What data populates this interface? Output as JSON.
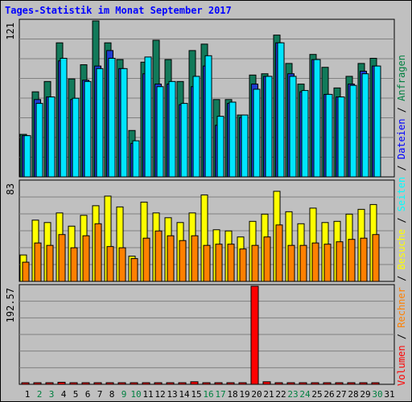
{
  "title": "Tages-Statistik im Monat September 2017",
  "legend": {
    "separator": " / ",
    "items": [
      {
        "label": "Volumen",
        "color": "#ff0000"
      },
      {
        "label": "Rechner",
        "color": "#ff8000"
      },
      {
        "label": "Besuche",
        "color": "#ffff00"
      },
      {
        "label": "Seiten",
        "color": "#00ffff"
      },
      {
        "label": "Dateien",
        "color": "#0000ff"
      },
      {
        "label": "Anfragen",
        "color": "#008040"
      }
    ]
  },
  "colors": {
    "anfragen": "#127a5a",
    "dateien": "#1e3ccf",
    "seiten": "#00e5ff",
    "besuche": "#ffff00",
    "rechner": "#ff8000",
    "volumen": "#ff0000",
    "weekday_label": "#000000",
    "weekend_label": "#008040"
  },
  "chart_data": {
    "type": "bar",
    "title": "Tages-Statistik im Monat September 2017",
    "days": [
      "1",
      "2",
      "3",
      "4",
      "5",
      "6",
      "7",
      "8",
      "9",
      "10",
      "11",
      "12",
      "13",
      "14",
      "15",
      "16",
      "17",
      "18",
      "19",
      "20",
      "21",
      "22",
      "23",
      "24",
      "25",
      "26",
      "27",
      "28",
      "29",
      "30",
      "31"
    ],
    "weekend_days": [
      "2",
      "3",
      "9",
      "10",
      "16",
      "17",
      "23",
      "24",
      "30"
    ],
    "panels": [
      {
        "name": "top",
        "axis_label": "121",
        "ylim": [
          0,
          121
        ],
        "series": [
          {
            "key": "anfragen",
            "values": [
              33,
              66,
              74,
              104,
              76,
              87,
              121,
              104,
              91,
              36,
              89,
              106,
              91,
              74,
              98,
              103,
              60,
              60,
              48,
              79,
              80,
              110,
              88,
              72,
              95,
              85,
              69,
              78,
              88,
              92,
              0
            ]
          },
          {
            "key": "dateien",
            "values": [
              32,
              60,
              62,
              90,
              60,
              75,
              86,
              98,
              84,
              26,
              80,
              72,
              72,
              56,
              70,
              86,
              40,
              57,
              46,
              72,
              78,
              104,
              80,
              66,
              91,
              64,
              62,
              72,
              82,
              86,
              0
            ]
          },
          {
            "key": "seiten",
            "values": [
              32,
              57,
              62,
              92,
              61,
              74,
              84,
              92,
              84,
              28,
              93,
              70,
              74,
              57,
              78,
              94,
              47,
              58,
              48,
              68,
              78,
              104,
              78,
              67,
              91,
              64,
              62,
              71,
              80,
              86,
              0
            ]
          }
        ]
      },
      {
        "name": "middle",
        "axis_label": "83",
        "ylim": [
          0,
          83
        ],
        "series": [
          {
            "key": "besuche",
            "values": [
              22,
              51,
              49,
              57,
              46,
              55,
              63,
              71,
              62,
              21,
              66,
              57,
              53,
              49,
              57,
              72,
              43,
              42,
              37,
              50,
              56,
              75,
              58,
              48,
              61,
              49,
              50,
              56,
              60,
              64,
              0
            ]
          },
          {
            "key": "rechner",
            "values": [
              16,
              32,
              30,
              39,
              28,
              38,
              48,
              29,
              28,
              19,
              36,
              42,
              38,
              34,
              38,
              30,
              31,
              31,
              27,
              30,
              37,
              47,
              30,
              30,
              32,
              31,
              33,
              35,
              36,
              39,
              0
            ]
          }
        ]
      },
      {
        "name": "bottom",
        "axis_label": "192.57",
        "ylim": [
          0,
          192.57
        ],
        "series": [
          {
            "key": "volumen",
            "values": [
              2,
              2,
              2,
              4,
              2,
              3,
              3,
              2,
              2,
              2,
              2,
              3,
              2,
              2,
              5,
              2,
              2,
              2,
              2,
              192.57,
              5,
              3,
              2,
              2,
              2,
              2,
              2,
              2,
              2,
              2,
              0
            ]
          }
        ]
      }
    ]
  }
}
